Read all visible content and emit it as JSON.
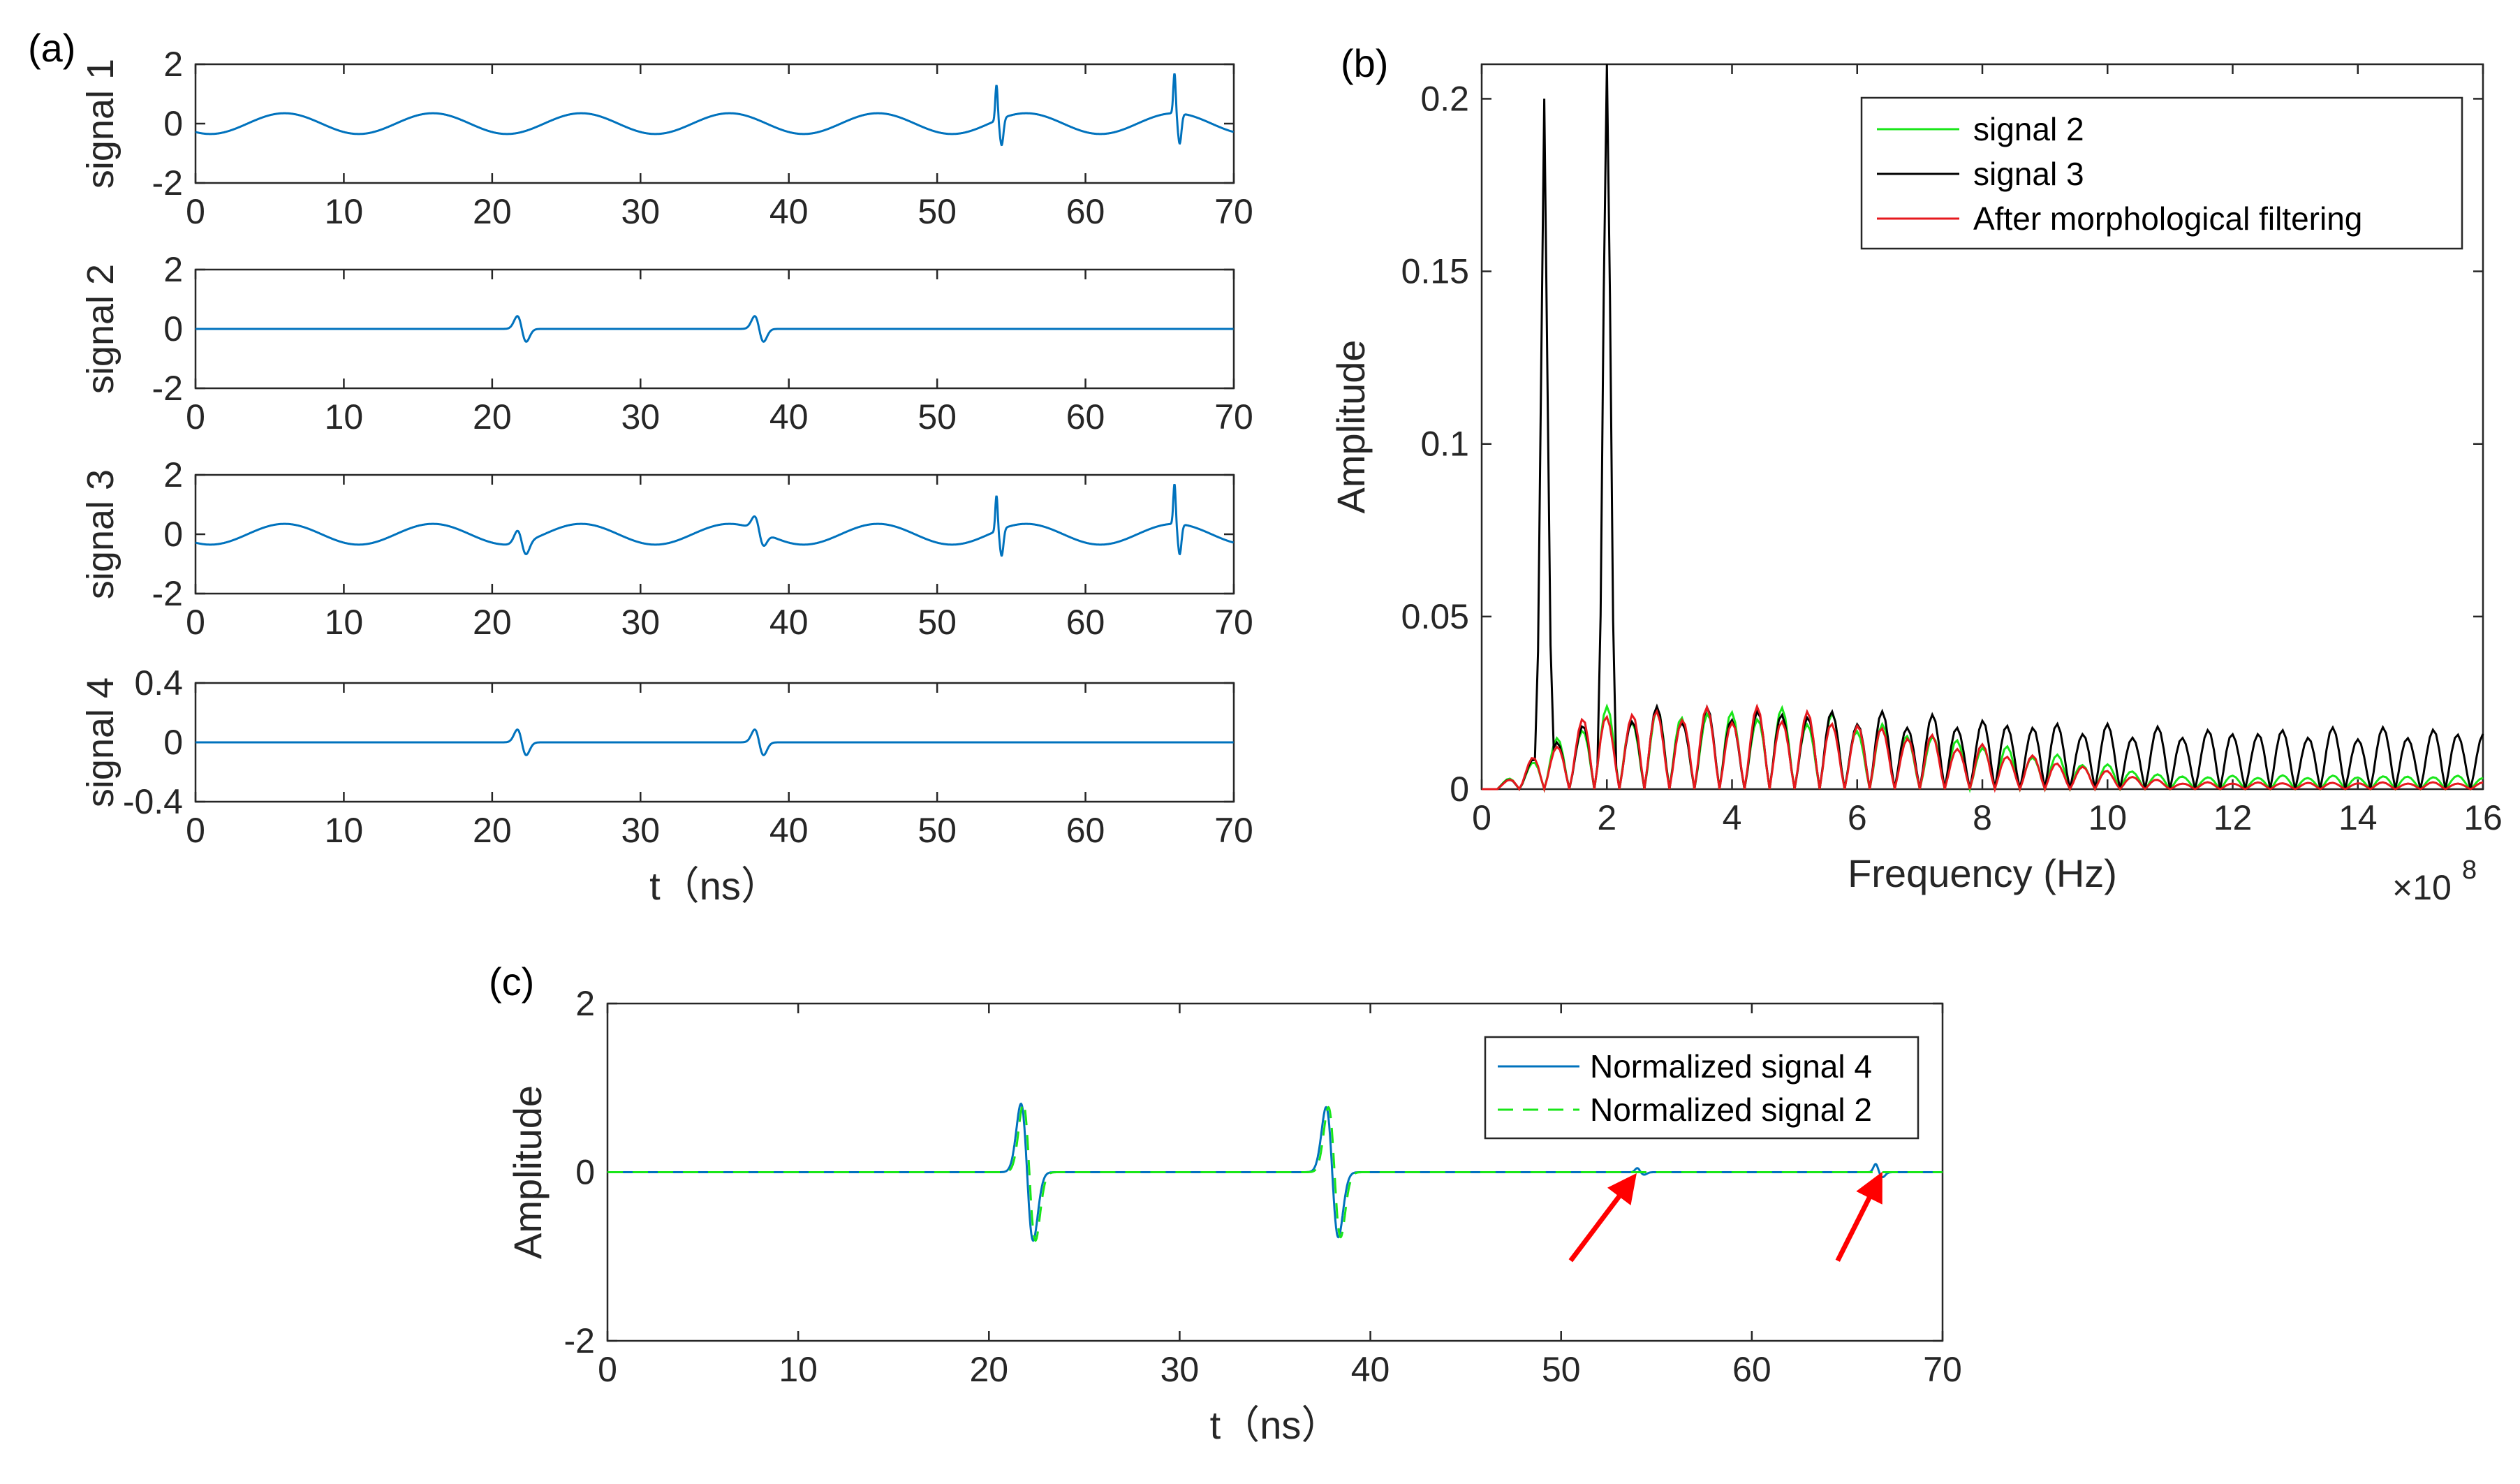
{
  "figure": {
    "panel_a_label": "(a)",
    "panel_b_label": "(b)",
    "panel_c_label": "(c)"
  },
  "colors": {
    "blue": "#0072BD",
    "green": "#19E619",
    "black": "#000000",
    "red": "#E6191E",
    "arrow": "#FF0000",
    "axis": "#262626"
  },
  "chart_data": [
    {
      "id": "a1",
      "type": "line",
      "panel": "(a)",
      "ylabel": "signal 1",
      "xlabel": "",
      "xlim": [
        0,
        70
      ],
      "ylim": [
        -2,
        2
      ],
      "xticks": [
        0,
        10,
        20,
        30,
        40,
        50,
        60,
        70
      ],
      "yticks": [
        -2,
        0,
        2
      ],
      "ytick_labels": [
        "-2",
        "0",
        "2"
      ],
      "series": [
        {
          "name": "signal 1",
          "color": "#0072BD",
          "components": {
            "sine_amp": 0.35,
            "sine_period_ns": 10,
            "spikes": [
              {
                "t": 54,
                "amp": 1.2
              },
              {
                "t": 66,
                "amp": 1.35
              }
            ]
          }
        }
      ]
    },
    {
      "id": "a2",
      "type": "line",
      "panel": "(a)",
      "ylabel": "signal 2",
      "xlabel": "",
      "xlim": [
        0,
        70
      ],
      "ylim": [
        -2,
        2
      ],
      "xticks": [
        0,
        10,
        20,
        30,
        40,
        50,
        60,
        70
      ],
      "yticks": [
        -2,
        0,
        2
      ],
      "ytick_labels": [
        "-2",
        "0",
        "2"
      ],
      "series": [
        {
          "name": "signal 2",
          "color": "#0072BD",
          "components": {
            "sine_amp": 0,
            "pulses": [
              {
                "t": 22,
                "amp": 0.5
              },
              {
                "t": 38,
                "amp": 0.5
              }
            ]
          }
        }
      ]
    },
    {
      "id": "a3",
      "type": "line",
      "panel": "(a)",
      "ylabel": "signal 3",
      "xlabel": "",
      "xlim": [
        0,
        70
      ],
      "ylim": [
        -2,
        2
      ],
      "xticks": [
        0,
        10,
        20,
        30,
        40,
        50,
        60,
        70
      ],
      "yticks": [
        -2,
        0,
        2
      ],
      "ytick_labels": [
        "-2",
        "0",
        "2"
      ],
      "series": [
        {
          "name": "signal 3",
          "color": "#0072BD",
          "components": {
            "sine_amp": 0.35,
            "sine_period_ns": 10,
            "pulses": [
              {
                "t": 22,
                "amp": 0.5
              },
              {
                "t": 38,
                "amp": 0.5
              }
            ],
            "spikes": [
              {
                "t": 54,
                "amp": 1.2
              },
              {
                "t": 66,
                "amp": 1.35
              }
            ]
          }
        }
      ]
    },
    {
      "id": "a4",
      "type": "line",
      "panel": "(a)",
      "ylabel": "signal 4",
      "xlabel": "t（ns）",
      "xlim": [
        0,
        70
      ],
      "ylim": [
        -0.4,
        0.4
      ],
      "xticks": [
        0,
        10,
        20,
        30,
        40,
        50,
        60,
        70
      ],
      "yticks": [
        -0.4,
        0,
        0.4
      ],
      "ytick_labels": [
        "-0.4",
        "0",
        "0.4"
      ],
      "series": [
        {
          "name": "signal 4",
          "color": "#0072BD",
          "components": {
            "sine_amp": 0,
            "pulses": [
              {
                "t": 22,
                "amp": 0.1
              },
              {
                "t": 38,
                "amp": 0.1
              }
            ]
          }
        }
      ]
    },
    {
      "id": "b",
      "type": "line",
      "panel": "(b)",
      "xlabel": "Frequency (Hz)",
      "ylabel": "Amplitude",
      "x_exponent_base": "×10",
      "x_exponent_power": "8",
      "xlim": [
        0,
        16
      ],
      "ylim": [
        0,
        0.21
      ],
      "xticks": [
        0,
        2,
        4,
        6,
        8,
        10,
        12,
        14,
        16
      ],
      "yticks": [
        0,
        0.05,
        0.1,
        0.15,
        0.2
      ],
      "ytick_labels": [
        "0",
        "0.05",
        "0.1",
        "0.15",
        "0.2"
      ],
      "legend": [
        "signal 2",
        "signal 3",
        "After morphological filtering"
      ],
      "series": [
        {
          "name": "signal 2",
          "color": "#19E619",
          "peaks": [],
          "envelope_end": 0.004
        },
        {
          "name": "signal 3",
          "color": "#000000",
          "peaks": [
            {
              "f": 1.0,
              "amp": 0.2
            },
            {
              "f": 2.0,
              "amp": 0.21
            }
          ],
          "envelope_end": 0.018
        },
        {
          "name": "After morphological filtering",
          "color": "#E6191E",
          "peaks": [],
          "envelope_end": 0.002
        }
      ],
      "comb_spacing_e8": 0.4,
      "comb_peak": 0.024
    },
    {
      "id": "c",
      "type": "line",
      "panel": "(c)",
      "xlabel": "t（ns）",
      "ylabel": "Amplitude",
      "xlim": [
        0,
        70
      ],
      "ylim": [
        -2,
        2
      ],
      "xticks": [
        0,
        10,
        20,
        30,
        40,
        50,
        60,
        70
      ],
      "yticks": [
        -2,
        0,
        2
      ],
      "ytick_labels": [
        "-2",
        "0",
        "2"
      ],
      "legend": [
        "Normalized signal 4",
        "Normalized signal 2"
      ],
      "series": [
        {
          "name": "Normalized signal 4",
          "color": "#0072BD",
          "style": "solid",
          "pulses": [
            {
              "t": 22,
              "amp": 1.0
            },
            {
              "t": 38,
              "amp": 0.95
            }
          ],
          "small_bumps": [
            {
              "t": 54,
              "amp": 0.05
            },
            {
              "t": 66.5,
              "amp": 0.1
            }
          ]
        },
        {
          "name": "Normalized signal 2",
          "color": "#19E619",
          "style": "dashed",
          "pulses": [
            {
              "t": 22,
              "amp": 1.0
            },
            {
              "t": 38,
              "amp": 0.95
            }
          ],
          "small_bumps": []
        }
      ],
      "arrows": [
        {
          "from_t": 50.5,
          "from_y": -1.05,
          "to_t": 53.5,
          "to_y": -0.15
        },
        {
          "from_t": 64.5,
          "from_y": -1.05,
          "to_t": 66.5,
          "to_y": -0.15
        }
      ]
    }
  ]
}
